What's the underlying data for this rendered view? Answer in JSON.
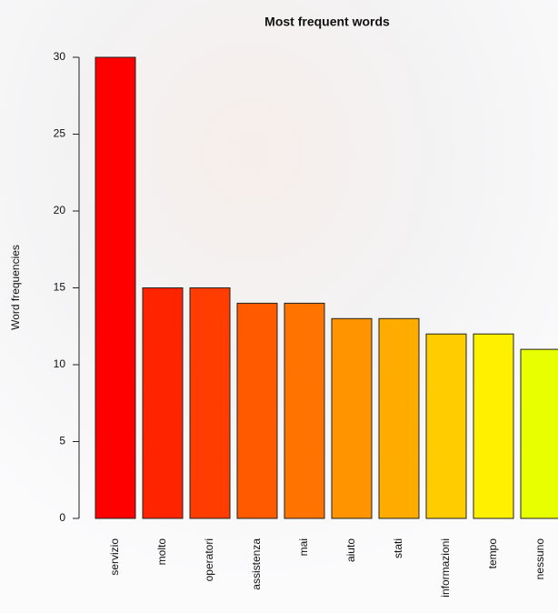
{
  "chart_data": {
    "type": "bar",
    "title": "Most frequent words",
    "y_label": "Word frequencies",
    "categories": [
      "servizio",
      "molto",
      "operatori",
      "assistenza",
      "mai",
      "aiuto",
      "stati",
      "informazioni",
      "tempo",
      "nessuno"
    ],
    "values": [
      30,
      15,
      15,
      14,
      14,
      13,
      13,
      12,
      12,
      11
    ],
    "colors": [
      "#ff0000",
      "#ff2400",
      "#ff3d00",
      "#ff5a00",
      "#ff7300",
      "#ff9400",
      "#ffab00",
      "#ffcc00",
      "#fff000",
      "#e8ff00"
    ],
    "ylim": [
      0,
      30
    ],
    "yticks": [
      0,
      5,
      10,
      15,
      20,
      25,
      30
    ]
  }
}
